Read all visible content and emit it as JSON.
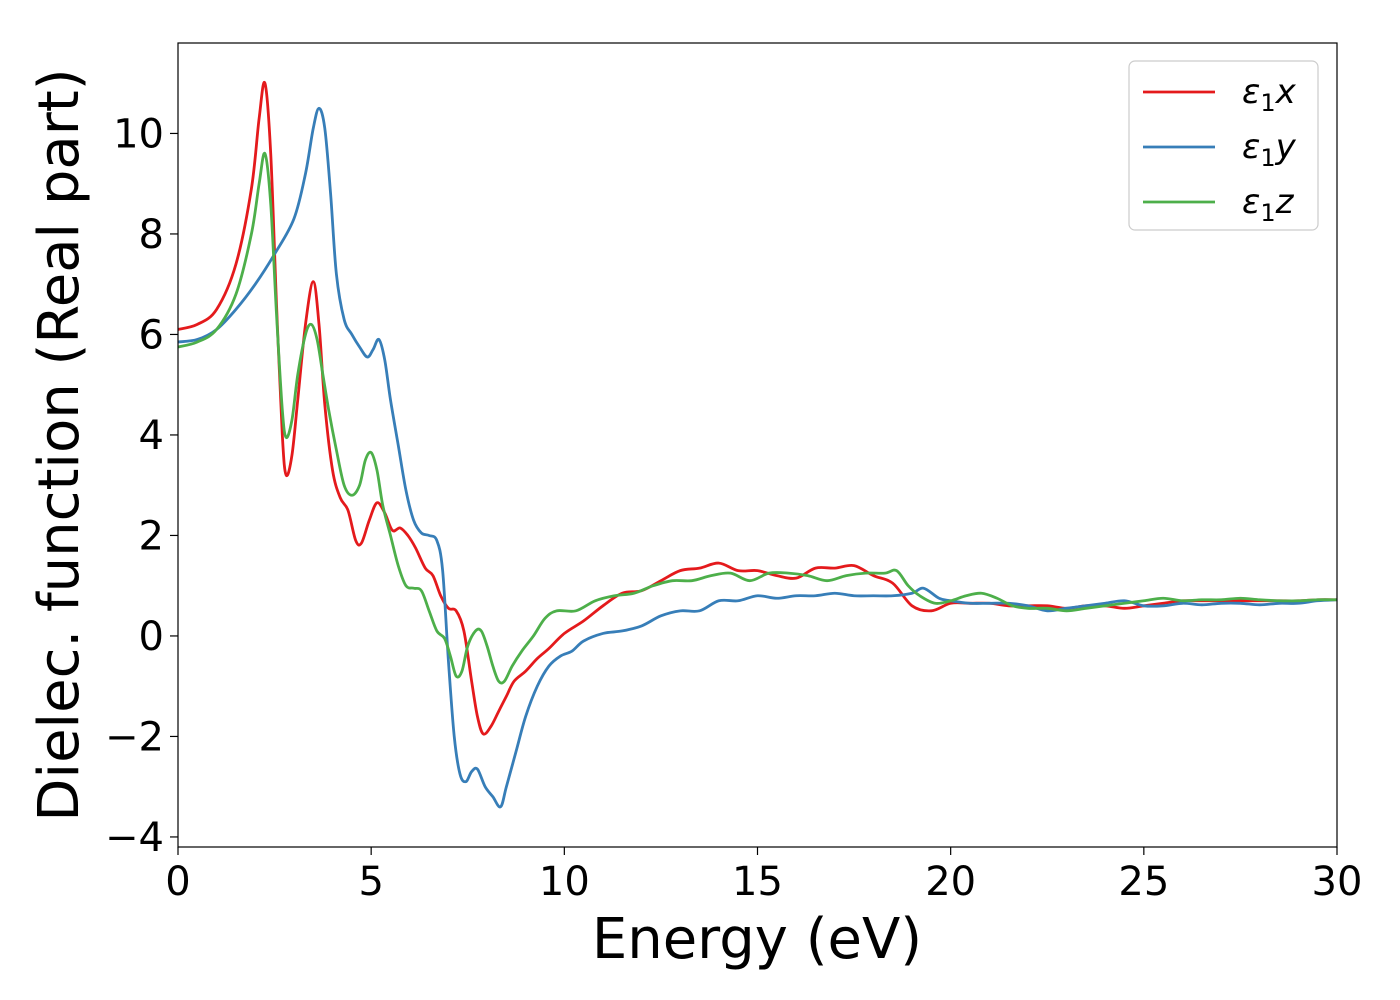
{
  "chart_data": {
    "type": "line",
    "title": "",
    "xlabel": "Energy (eV)",
    "ylabel": "Dielec. function (Real part)",
    "xlim": [
      0,
      30
    ],
    "ylim": [
      -4.2,
      11.8
    ],
    "xticks": [
      0,
      5,
      10,
      15,
      20,
      25,
      30
    ],
    "yticks": [
      -4,
      -2,
      0,
      2,
      4,
      6,
      8,
      10
    ],
    "xtick_labels": [
      "0",
      "5",
      "10",
      "15",
      "20",
      "25",
      "30"
    ],
    "ytick_labels": [
      "−4",
      "−2",
      "0",
      "2",
      "4",
      "6",
      "8",
      "10"
    ],
    "grid": false,
    "legend_position": "top-right",
    "series": [
      {
        "name": "ε₁x",
        "legend_main": "ε",
        "legend_sub": "1",
        "legend_tail": "x",
        "color": "#e41a1c",
        "points": [
          [
            0,
            6.1
          ],
          [
            0.5,
            6.2
          ],
          [
            1.0,
            6.5
          ],
          [
            1.5,
            7.4
          ],
          [
            1.9,
            8.9
          ],
          [
            2.1,
            10.3
          ],
          [
            2.25,
            11.0
          ],
          [
            2.4,
            9.6
          ],
          [
            2.55,
            6.6
          ],
          [
            2.7,
            4.0
          ],
          [
            2.8,
            3.2
          ],
          [
            2.95,
            3.6
          ],
          [
            3.1,
            4.7
          ],
          [
            3.3,
            6.2
          ],
          [
            3.5,
            7.05
          ],
          [
            3.65,
            6.2
          ],
          [
            3.8,
            4.6
          ],
          [
            4.0,
            3.3
          ],
          [
            4.2,
            2.75
          ],
          [
            4.4,
            2.5
          ],
          [
            4.6,
            1.9
          ],
          [
            4.75,
            1.85
          ],
          [
            4.95,
            2.3
          ],
          [
            5.15,
            2.65
          ],
          [
            5.35,
            2.45
          ],
          [
            5.55,
            2.1
          ],
          [
            5.75,
            2.15
          ],
          [
            5.95,
            2.0
          ],
          [
            6.15,
            1.75
          ],
          [
            6.4,
            1.35
          ],
          [
            6.6,
            1.2
          ],
          [
            6.8,
            0.8
          ],
          [
            7.0,
            0.55
          ],
          [
            7.2,
            0.5
          ],
          [
            7.4,
            0.1
          ],
          [
            7.6,
            -0.9
          ],
          [
            7.75,
            -1.6
          ],
          [
            7.9,
            -1.95
          ],
          [
            8.1,
            -1.8
          ],
          [
            8.3,
            -1.5
          ],
          [
            8.5,
            -1.2
          ],
          [
            8.7,
            -0.9
          ],
          [
            9.0,
            -0.7
          ],
          [
            9.3,
            -0.45
          ],
          [
            9.6,
            -0.25
          ],
          [
            10.0,
            0.05
          ],
          [
            10.5,
            0.3
          ],
          [
            11.0,
            0.6
          ],
          [
            11.5,
            0.85
          ],
          [
            12.0,
            0.9
          ],
          [
            12.5,
            1.1
          ],
          [
            13.0,
            1.3
          ],
          [
            13.5,
            1.35
          ],
          [
            14.0,
            1.45
          ],
          [
            14.5,
            1.3
          ],
          [
            15.0,
            1.3
          ],
          [
            15.5,
            1.2
          ],
          [
            16.0,
            1.15
          ],
          [
            16.5,
            1.35
          ],
          [
            17.0,
            1.35
          ],
          [
            17.5,
            1.4
          ],
          [
            18.0,
            1.2
          ],
          [
            18.5,
            1.05
          ],
          [
            19.0,
            0.6
          ],
          [
            19.5,
            0.5
          ],
          [
            20.0,
            0.65
          ],
          [
            20.5,
            0.65
          ],
          [
            21.0,
            0.65
          ],
          [
            21.5,
            0.6
          ],
          [
            22.0,
            0.6
          ],
          [
            22.5,
            0.6
          ],
          [
            23.0,
            0.55
          ],
          [
            23.5,
            0.6
          ],
          [
            24.0,
            0.6
          ],
          [
            24.5,
            0.55
          ],
          [
            25.0,
            0.6
          ],
          [
            25.5,
            0.65
          ],
          [
            26.0,
            0.7
          ],
          [
            26.5,
            0.7
          ],
          [
            27.0,
            0.7
          ],
          [
            27.5,
            0.7
          ],
          [
            28.0,
            0.7
          ],
          [
            28.5,
            0.7
          ],
          [
            29.0,
            0.7
          ],
          [
            29.5,
            0.72
          ],
          [
            30.0,
            0.72
          ]
        ]
      },
      {
        "name": "ε₁y",
        "legend_main": "ε",
        "legend_sub": "1",
        "legend_tail": "y",
        "color": "#377eb8",
        "points": [
          [
            0,
            5.85
          ],
          [
            0.5,
            5.9
          ],
          [
            1.0,
            6.1
          ],
          [
            1.5,
            6.5
          ],
          [
            2.0,
            7.0
          ],
          [
            2.5,
            7.6
          ],
          [
            3.0,
            8.3
          ],
          [
            3.3,
            9.2
          ],
          [
            3.5,
            10.1
          ],
          [
            3.65,
            10.5
          ],
          [
            3.8,
            10.1
          ],
          [
            3.95,
            8.8
          ],
          [
            4.1,
            7.2
          ],
          [
            4.3,
            6.3
          ],
          [
            4.5,
            6.0
          ],
          [
            4.7,
            5.75
          ],
          [
            4.9,
            5.55
          ],
          [
            5.05,
            5.7
          ],
          [
            5.2,
            5.9
          ],
          [
            5.35,
            5.5
          ],
          [
            5.5,
            4.7
          ],
          [
            5.7,
            3.8
          ],
          [
            5.9,
            2.9
          ],
          [
            6.1,
            2.3
          ],
          [
            6.3,
            2.05
          ],
          [
            6.5,
            2.0
          ],
          [
            6.7,
            1.9
          ],
          [
            6.85,
            1.3
          ],
          [
            7.0,
            -0.5
          ],
          [
            7.15,
            -2.0
          ],
          [
            7.3,
            -2.75
          ],
          [
            7.45,
            -2.9
          ],
          [
            7.6,
            -2.7
          ],
          [
            7.75,
            -2.65
          ],
          [
            7.95,
            -3.0
          ],
          [
            8.15,
            -3.2
          ],
          [
            8.35,
            -3.4
          ],
          [
            8.5,
            -3.0
          ],
          [
            8.75,
            -2.3
          ],
          [
            9.0,
            -1.6
          ],
          [
            9.3,
            -1.0
          ],
          [
            9.6,
            -0.6
          ],
          [
            9.9,
            -0.4
          ],
          [
            10.2,
            -0.3
          ],
          [
            10.5,
            -0.1
          ],
          [
            11.0,
            0.05
          ],
          [
            11.5,
            0.1
          ],
          [
            12.0,
            0.2
          ],
          [
            12.5,
            0.4
          ],
          [
            13.0,
            0.5
          ],
          [
            13.5,
            0.5
          ],
          [
            14.0,
            0.7
          ],
          [
            14.5,
            0.7
          ],
          [
            15.0,
            0.8
          ],
          [
            15.5,
            0.75
          ],
          [
            16.0,
            0.8
          ],
          [
            16.5,
            0.8
          ],
          [
            17.0,
            0.85
          ],
          [
            17.5,
            0.8
          ],
          [
            18.0,
            0.8
          ],
          [
            18.5,
            0.8
          ],
          [
            19.0,
            0.85
          ],
          [
            19.3,
            0.95
          ],
          [
            19.7,
            0.75
          ],
          [
            20.0,
            0.7
          ],
          [
            20.5,
            0.65
          ],
          [
            21.0,
            0.65
          ],
          [
            21.5,
            0.65
          ],
          [
            22.0,
            0.6
          ],
          [
            22.5,
            0.5
          ],
          [
            23.0,
            0.55
          ],
          [
            23.5,
            0.6
          ],
          [
            24.0,
            0.65
          ],
          [
            24.5,
            0.7
          ],
          [
            25.0,
            0.6
          ],
          [
            25.5,
            0.6
          ],
          [
            26.0,
            0.65
          ],
          [
            26.5,
            0.62
          ],
          [
            27.0,
            0.65
          ],
          [
            27.5,
            0.65
          ],
          [
            28.0,
            0.62
          ],
          [
            28.5,
            0.65
          ],
          [
            29.0,
            0.65
          ],
          [
            29.5,
            0.7
          ],
          [
            30.0,
            0.72
          ]
        ]
      },
      {
        "name": "ε₁z",
        "legend_main": "ε",
        "legend_sub": "1",
        "legend_tail": "z",
        "color": "#4daf4a",
        "points": [
          [
            0,
            5.75
          ],
          [
            0.5,
            5.85
          ],
          [
            1.0,
            6.1
          ],
          [
            1.5,
            6.8
          ],
          [
            1.9,
            8.0
          ],
          [
            2.1,
            9.0
          ],
          [
            2.25,
            9.6
          ],
          [
            2.4,
            8.6
          ],
          [
            2.55,
            6.4
          ],
          [
            2.7,
            4.5
          ],
          [
            2.8,
            3.95
          ],
          [
            2.95,
            4.3
          ],
          [
            3.1,
            5.2
          ],
          [
            3.3,
            6.0
          ],
          [
            3.45,
            6.2
          ],
          [
            3.6,
            5.9
          ],
          [
            3.75,
            5.2
          ],
          [
            3.9,
            4.5
          ],
          [
            4.1,
            3.7
          ],
          [
            4.3,
            3.0
          ],
          [
            4.5,
            2.8
          ],
          [
            4.7,
            3.0
          ],
          [
            4.85,
            3.5
          ],
          [
            5.0,
            3.65
          ],
          [
            5.15,
            3.3
          ],
          [
            5.3,
            2.6
          ],
          [
            5.5,
            2.0
          ],
          [
            5.7,
            1.4
          ],
          [
            5.9,
            1.0
          ],
          [
            6.1,
            0.95
          ],
          [
            6.3,
            0.9
          ],
          [
            6.5,
            0.5
          ],
          [
            6.7,
            0.1
          ],
          [
            6.9,
            -0.05
          ],
          [
            7.05,
            -0.4
          ],
          [
            7.2,
            -0.8
          ],
          [
            7.35,
            -0.7
          ],
          [
            7.5,
            -0.2
          ],
          [
            7.7,
            0.1
          ],
          [
            7.85,
            0.1
          ],
          [
            8.0,
            -0.2
          ],
          [
            8.15,
            -0.6
          ],
          [
            8.3,
            -0.9
          ],
          [
            8.45,
            -0.9
          ],
          [
            8.65,
            -0.6
          ],
          [
            8.9,
            -0.3
          ],
          [
            9.2,
            0.0
          ],
          [
            9.5,
            0.35
          ],
          [
            9.8,
            0.5
          ],
          [
            10.3,
            0.5
          ],
          [
            10.8,
            0.7
          ],
          [
            11.3,
            0.8
          ],
          [
            11.8,
            0.85
          ],
          [
            12.3,
            1.0
          ],
          [
            12.8,
            1.1
          ],
          [
            13.3,
            1.1
          ],
          [
            13.8,
            1.2
          ],
          [
            14.3,
            1.25
          ],
          [
            14.8,
            1.1
          ],
          [
            15.3,
            1.25
          ],
          [
            15.8,
            1.25
          ],
          [
            16.3,
            1.2
          ],
          [
            16.8,
            1.1
          ],
          [
            17.3,
            1.2
          ],
          [
            17.8,
            1.25
          ],
          [
            18.3,
            1.25
          ],
          [
            18.6,
            1.3
          ],
          [
            18.9,
            1.0
          ],
          [
            19.2,
            0.8
          ],
          [
            19.6,
            0.65
          ],
          [
            20.0,
            0.7
          ],
          [
            20.4,
            0.8
          ],
          [
            20.8,
            0.85
          ],
          [
            21.2,
            0.75
          ],
          [
            21.6,
            0.6
          ],
          [
            22.0,
            0.55
          ],
          [
            22.5,
            0.55
          ],
          [
            23.0,
            0.5
          ],
          [
            23.5,
            0.55
          ],
          [
            24.0,
            0.6
          ],
          [
            24.5,
            0.65
          ],
          [
            25.0,
            0.7
          ],
          [
            25.5,
            0.75
          ],
          [
            26.0,
            0.7
          ],
          [
            26.5,
            0.72
          ],
          [
            27.0,
            0.72
          ],
          [
            27.5,
            0.75
          ],
          [
            28.0,
            0.72
          ],
          [
            28.5,
            0.7
          ],
          [
            29.0,
            0.7
          ],
          [
            29.5,
            0.72
          ],
          [
            30.0,
            0.72
          ]
        ]
      }
    ]
  }
}
